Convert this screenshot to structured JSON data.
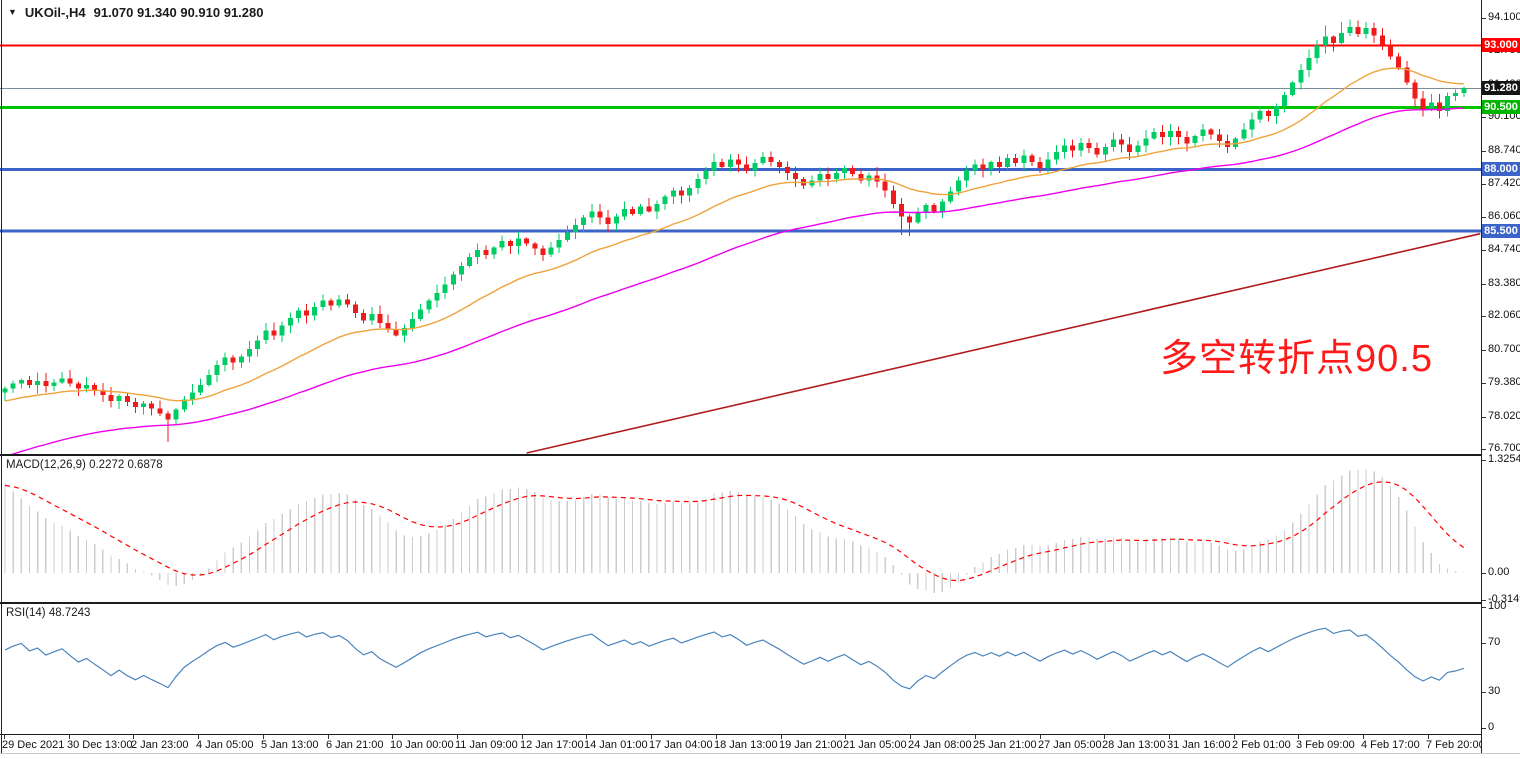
{
  "header": {
    "dropdown_icon": "▼",
    "symbol": "UKOil-,H4",
    "ohlc": "91.070 91.340 90.910 91.280"
  },
  "annotation": {
    "text": "多空转折点90.5",
    "color": "#ff1a1a"
  },
  "colors": {
    "background": "#ffffff",
    "candle_up": "#00cc66",
    "candle_down": "#ef1a1a",
    "ma_fast": "#efa33b",
    "ma_mid": "#ee00ee",
    "ma_slow": "#b01c1c",
    "current_price_line": "#7d8b99",
    "current_price_badge": "#141414",
    "macd_histogram": "#cdcdcd",
    "macd_signal": "#ff0000",
    "rsi_line": "#4985be",
    "axis_text": "#111111"
  },
  "chart_data": {
    "type": "candlestick",
    "symbol": "UKOil-",
    "timeframe": "H4",
    "title": "UKOil-,H4 91.070 91.340 90.910 91.280",
    "last_bar": {
      "open": 91.07,
      "high": 91.34,
      "low": 90.91,
      "close": 91.28
    },
    "price_axis_ticks": [
      "94.100",
      "92.780",
      "91.420",
      "90.100",
      "88.740",
      "87.420",
      "86.060",
      "84.740",
      "83.380",
      "82.060",
      "80.700",
      "79.380",
      "78.020",
      "76.700"
    ],
    "price_range": {
      "top": 94.75,
      "bottom": 76.55
    },
    "grid": "off",
    "levels": [
      {
        "price": 93.0,
        "label": "93.000",
        "color": "#ff0000",
        "thickness": 2,
        "badge_bg": "#ff0000"
      },
      {
        "price": 90.5,
        "label": "90.500",
        "color": "#00c400",
        "thickness": 3,
        "badge_bg": "#00b400"
      },
      {
        "price": 88.0,
        "label": "88.000",
        "color": "#3c64c8",
        "thickness": 3,
        "badge_bg": "#3c64c8"
      },
      {
        "price": 85.5,
        "label": "85.500",
        "color": "#3c64c8",
        "thickness": 3,
        "badge_bg": "#3c64c8"
      }
    ],
    "current_price": {
      "price": 91.28,
      "label": "91.280"
    },
    "candles": {
      "closes": [
        79.15,
        79.35,
        79.5,
        79.3,
        79.45,
        79.25,
        79.4,
        79.55,
        79.35,
        79.15,
        79.3,
        79.1,
        78.9,
        78.65,
        78.85,
        78.6,
        78.4,
        78.55,
        78.35,
        78.15,
        77.9,
        78.3,
        78.7,
        79.0,
        79.3,
        79.7,
        80.1,
        80.4,
        80.2,
        80.45,
        80.75,
        81.1,
        81.5,
        81.3,
        81.7,
        82.0,
        82.3,
        82.1,
        82.45,
        82.7,
        82.5,
        82.75,
        82.55,
        82.2,
        81.9,
        82.15,
        81.8,
        81.55,
        81.3,
        81.6,
        81.95,
        82.35,
        82.7,
        83.0,
        83.35,
        83.75,
        84.1,
        84.45,
        84.75,
        84.55,
        84.85,
        85.1,
        84.9,
        85.2,
        85.0,
        84.8,
        84.55,
        84.85,
        85.15,
        85.45,
        85.75,
        86.05,
        86.3,
        86.05,
        85.8,
        86.1,
        86.4,
        86.2,
        86.5,
        86.3,
        86.6,
        86.9,
        87.15,
        86.95,
        87.25,
        87.6,
        87.95,
        88.3,
        88.1,
        88.4,
        88.2,
        87.95,
        88.25,
        88.5,
        88.3,
        88.1,
        87.85,
        87.6,
        87.35,
        87.55,
        87.8,
        87.6,
        87.85,
        88.05,
        87.8,
        87.55,
        87.75,
        87.5,
        87.15,
        86.6,
        86.1,
        85.85,
        86.25,
        86.55,
        86.3,
        86.7,
        87.1,
        87.55,
        87.95,
        88.2,
        88.0,
        88.3,
        88.1,
        88.45,
        88.25,
        88.55,
        88.3,
        88.05,
        88.4,
        88.7,
        88.95,
        88.75,
        89.05,
        88.85,
        88.6,
        88.9,
        89.2,
        89.0,
        88.7,
        88.95,
        89.25,
        89.5,
        89.3,
        89.55,
        89.3,
        89.05,
        89.35,
        89.6,
        89.4,
        89.15,
        88.9,
        89.25,
        89.6,
        90.0,
        90.35,
        90.15,
        90.55,
        91.0,
        91.5,
        92.0,
        92.5,
        93.0,
        93.35,
        93.1,
        93.5,
        93.75,
        93.45,
        93.7,
        93.4,
        93.0,
        92.55,
        92.1,
        91.5,
        90.85,
        90.4,
        90.7,
        90.35,
        90.95,
        91.07,
        91.28
      ],
      "overrides": {
        "20": {
          "l": 77.0
        },
        "110": {
          "l": 85.35
        },
        "111": {
          "l": 85.3
        },
        "162": {
          "h": 93.8
        },
        "164": {
          "h": 93.95
        },
        "165": {
          "h": 94.05
        },
        "167": {
          "h": 93.95
        },
        "179": {
          "h": 91.34,
          "l": 90.91
        }
      }
    },
    "moving_averages": [
      {
        "name": "ma-fast-orange",
        "period": 21,
        "seed": 78.6,
        "color": "#efa33b"
      },
      {
        "name": "ma-mid-magenta",
        "period": 55,
        "seed": 76.3,
        "color": "#ee00ee"
      },
      {
        "name": "ma-slow-darkred",
        "anchors": {
          "x1_bar": 64,
          "p1": 76.55,
          "x2_bar": 181,
          "p2": 85.4
        },
        "color": "#b01c1c"
      }
    ],
    "time_axis": [
      "29 Dec 2021",
      "30 Dec 13:00",
      "2 Jan 23:00",
      "4 Jan 05:00",
      "5 Jan 13:00",
      "6 Jan 21:00",
      "10 Jan 00:00",
      "11 Jan 09:00",
      "12 Jan 17:00",
      "14 Jan 01:00",
      "17 Jan 04:00",
      "18 Jan 13:00",
      "19 Jan 21:00",
      "21 Jan 05:00",
      "24 Jan 08:00",
      "25 Jan 21:00",
      "27 Jan 05:00",
      "28 Jan 13:00",
      "31 Jan 16:00",
      "2 Feb 01:00",
      "3 Feb 09:00",
      "4 Feb 17:00",
      "7 Feb 20:00"
    ],
    "indicators": {
      "macd": {
        "label": "MACD(12,26,9) 0.2272 0.6878",
        "params": [
          12,
          26,
          9
        ],
        "main_value": 0.2272,
        "signal_value": 0.6878,
        "axis_labels": [
          "1.3254",
          "0.00",
          "-0.3149"
        ],
        "axis_range": {
          "max": 1.3254,
          "min": -0.3149
        },
        "seeds": {
          "ema_fast_offset": 0.62,
          "ema_slow_offset": -0.58,
          "signal": 1.02
        }
      },
      "rsi": {
        "label": "RSI(14) 48.7243",
        "period": 14,
        "value": 48.7243,
        "axis_labels": [
          "100",
          "70",
          "30",
          "0"
        ],
        "seeds": {
          "avg_gain": 0.1,
          "avg_loss": 0.055
        }
      }
    }
  }
}
